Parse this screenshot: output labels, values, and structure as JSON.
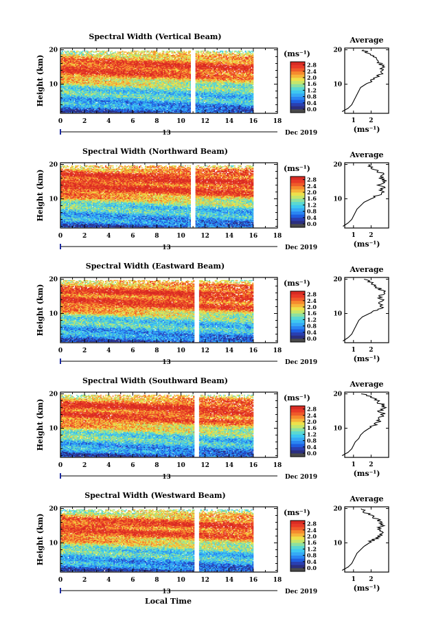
{
  "figure": {
    "xlabel": "Local Time",
    "date_label": "Dec 2019",
    "day_label": "13",
    "avg_title": "Average",
    "unit": "(ms⁻¹)",
    "colors": {
      "scale": [
        "#2b2f7f",
        "#2a3fb0",
        "#1f5ee0",
        "#2a86f2",
        "#35a9f5",
        "#3ec8f0",
        "#5ad8d2",
        "#8de0a0",
        "#c6e66a",
        "#eee04a",
        "#f7b43a",
        "#f68a2e",
        "#ef5b2a",
        "#e83a27",
        "#d92b23"
      ],
      "bottom": "#4a4a4a",
      "line": "#000000"
    }
  },
  "chart_data": [
    {
      "type": "heatmap",
      "title": "Spectral Width (Vertical Beam)",
      "ylabel": "Height (km)",
      "xlim": [
        0,
        18
      ],
      "ylim": [
        1.5,
        20.5
      ],
      "x_ticks": [
        "0",
        "2",
        "4",
        "6",
        "8",
        "10",
        "12",
        "14",
        "16",
        "18"
      ],
      "y_ticks": [
        "10",
        "20"
      ],
      "data_x_range": [
        0,
        16
      ],
      "gap": [
        10.8,
        11.1
      ],
      "colorbar": {
        "ticks": [
          "0.0",
          "0.4",
          "0.8",
          "1.2",
          "1.6",
          "2.0",
          "2.4",
          "2.8"
        ],
        "range": [
          0,
          3.0
        ]
      },
      "profile": {
        "heights": [
          2,
          3,
          4,
          5,
          6,
          7,
          8,
          9,
          10,
          11,
          12,
          13,
          14,
          15,
          16,
          17,
          18,
          19,
          20
        ],
        "values": [
          0.35,
          0.7,
          0.9,
          1.0,
          1.1,
          1.2,
          1.3,
          1.4,
          1.7,
          2.0,
          2.3,
          2.55,
          2.6,
          2.7,
          2.5,
          2.3,
          2.1,
          1.8,
          1.6
        ],
        "xlim": [
          0.5,
          3.0
        ],
        "x_ticks": [
          "1",
          "2"
        ]
      }
    },
    {
      "type": "heatmap",
      "title": "Spectral Width (Northward Beam)",
      "ylabel": "Height (km)",
      "xlim": [
        0,
        18
      ],
      "ylim": [
        1.5,
        20.5
      ],
      "x_ticks": [
        "0",
        "2",
        "4",
        "6",
        "8",
        "10",
        "12",
        "14",
        "16",
        "18"
      ],
      "y_ticks": [
        "10",
        "20"
      ],
      "data_x_range": [
        0,
        16
      ],
      "gap": [
        10.8,
        11.1
      ],
      "colorbar": {
        "ticks": [
          "0.0",
          "0.4",
          "0.8",
          "1.2",
          "1.6",
          "2.0",
          "2.4",
          "2.8"
        ],
        "range": [
          0,
          3.0
        ]
      },
      "profile": {
        "heights": [
          2,
          3,
          4,
          5,
          6,
          7,
          8,
          9,
          10,
          11,
          12,
          13,
          14,
          15,
          16,
          17,
          18,
          19,
          20
        ],
        "values": [
          0.4,
          0.7,
          0.9,
          1.0,
          1.1,
          1.2,
          1.4,
          1.6,
          2.0,
          2.4,
          2.6,
          2.7,
          2.5,
          2.8,
          2.55,
          2.7,
          2.4,
          2.1,
          1.7
        ],
        "xlim": [
          0.5,
          3.0
        ],
        "x_ticks": [
          "1",
          "2"
        ]
      }
    },
    {
      "type": "heatmap",
      "title": "Spectral Width (Eastward Beam)",
      "ylabel": "Height (km)",
      "xlim": [
        0,
        18
      ],
      "ylim": [
        1.5,
        20.5
      ],
      "x_ticks": [
        "0",
        "2",
        "4",
        "6",
        "8",
        "10",
        "12",
        "14",
        "16",
        "18"
      ],
      "y_ticks": [
        "10",
        "20"
      ],
      "data_x_range": [
        0,
        16
      ],
      "gap": [
        11.1,
        11.4
      ],
      "colorbar": {
        "ticks": [
          "0.0",
          "0.4",
          "0.8",
          "1.2",
          "1.6",
          "2.0",
          "2.4",
          "2.8"
        ],
        "range": [
          0,
          3.0
        ]
      },
      "profile": {
        "heights": [
          2,
          3,
          4,
          5,
          6,
          7,
          8,
          9,
          10,
          11,
          12,
          13,
          14,
          15,
          16,
          17,
          18,
          19,
          20
        ],
        "values": [
          0.4,
          0.7,
          0.9,
          1.0,
          1.1,
          1.2,
          1.3,
          1.5,
          1.9,
          2.3,
          2.6,
          2.5,
          2.7,
          2.4,
          2.8,
          2.5,
          2.3,
          2.0,
          1.6
        ],
        "xlim": [
          0.5,
          3.0
        ],
        "x_ticks": [
          "1",
          "2"
        ]
      }
    },
    {
      "type": "heatmap",
      "title": "Spectral Width (Southward Beam)",
      "ylabel": "Height (km)",
      "xlim": [
        0,
        18
      ],
      "ylim": [
        1.5,
        20.5
      ],
      "x_ticks": [
        "0",
        "2",
        "4",
        "6",
        "8",
        "10",
        "12",
        "14",
        "16",
        "18"
      ],
      "y_ticks": [
        "10",
        "20"
      ],
      "data_x_range": [
        0,
        16
      ],
      "gap": [
        11.1,
        11.4
      ],
      "colorbar": {
        "ticks": [
          "0.0",
          "0.4",
          "0.8",
          "1.2",
          "1.6",
          "2.0",
          "2.4",
          "2.8"
        ],
        "range": [
          0,
          3.0
        ]
      },
      "profile": {
        "heights": [
          2,
          3,
          4,
          5,
          6,
          7,
          8,
          9,
          10,
          11,
          12,
          13,
          14,
          15,
          16,
          17,
          18,
          19,
          20
        ],
        "values": [
          0.35,
          0.7,
          0.9,
          1.0,
          1.1,
          1.3,
          1.4,
          1.6,
          1.9,
          2.2,
          2.5,
          2.4,
          2.7,
          2.5,
          2.8,
          2.6,
          2.3,
          2.0,
          1.6
        ],
        "xlim": [
          0.5,
          3.0
        ],
        "x_ticks": [
          "1",
          "2"
        ]
      }
    },
    {
      "type": "heatmap",
      "title": "Spectral Width (Westward Beam)",
      "ylabel": "Height (km)",
      "xlim": [
        0,
        18
      ],
      "ylim": [
        1.5,
        20.5
      ],
      "x_ticks": [
        "0",
        "2",
        "4",
        "6",
        "8",
        "10",
        "12",
        "14",
        "16",
        "18"
      ],
      "y_ticks": [
        "10",
        "20"
      ],
      "data_x_range": [
        0,
        16
      ],
      "gap": [
        11.1,
        11.4
      ],
      "colorbar": {
        "ticks": [
          "0.0",
          "0.4",
          "0.8",
          "1.2",
          "1.6",
          "2.0",
          "2.4",
          "2.8"
        ],
        "range": [
          0,
          3.0
        ]
      },
      "profile": {
        "heights": [
          2,
          3,
          4,
          5,
          6,
          7,
          8,
          9,
          10,
          11,
          12,
          13,
          14,
          15,
          16,
          17,
          18,
          19,
          20
        ],
        "values": [
          0.35,
          0.7,
          0.9,
          1.0,
          1.1,
          1.2,
          1.4,
          1.6,
          1.9,
          2.2,
          2.5,
          2.6,
          2.4,
          2.7,
          2.5,
          2.3,
          2.0,
          1.7,
          1.4
        ],
        "xlim": [
          0.5,
          3.0
        ],
        "x_ticks": [
          "1",
          "2"
        ]
      }
    }
  ]
}
